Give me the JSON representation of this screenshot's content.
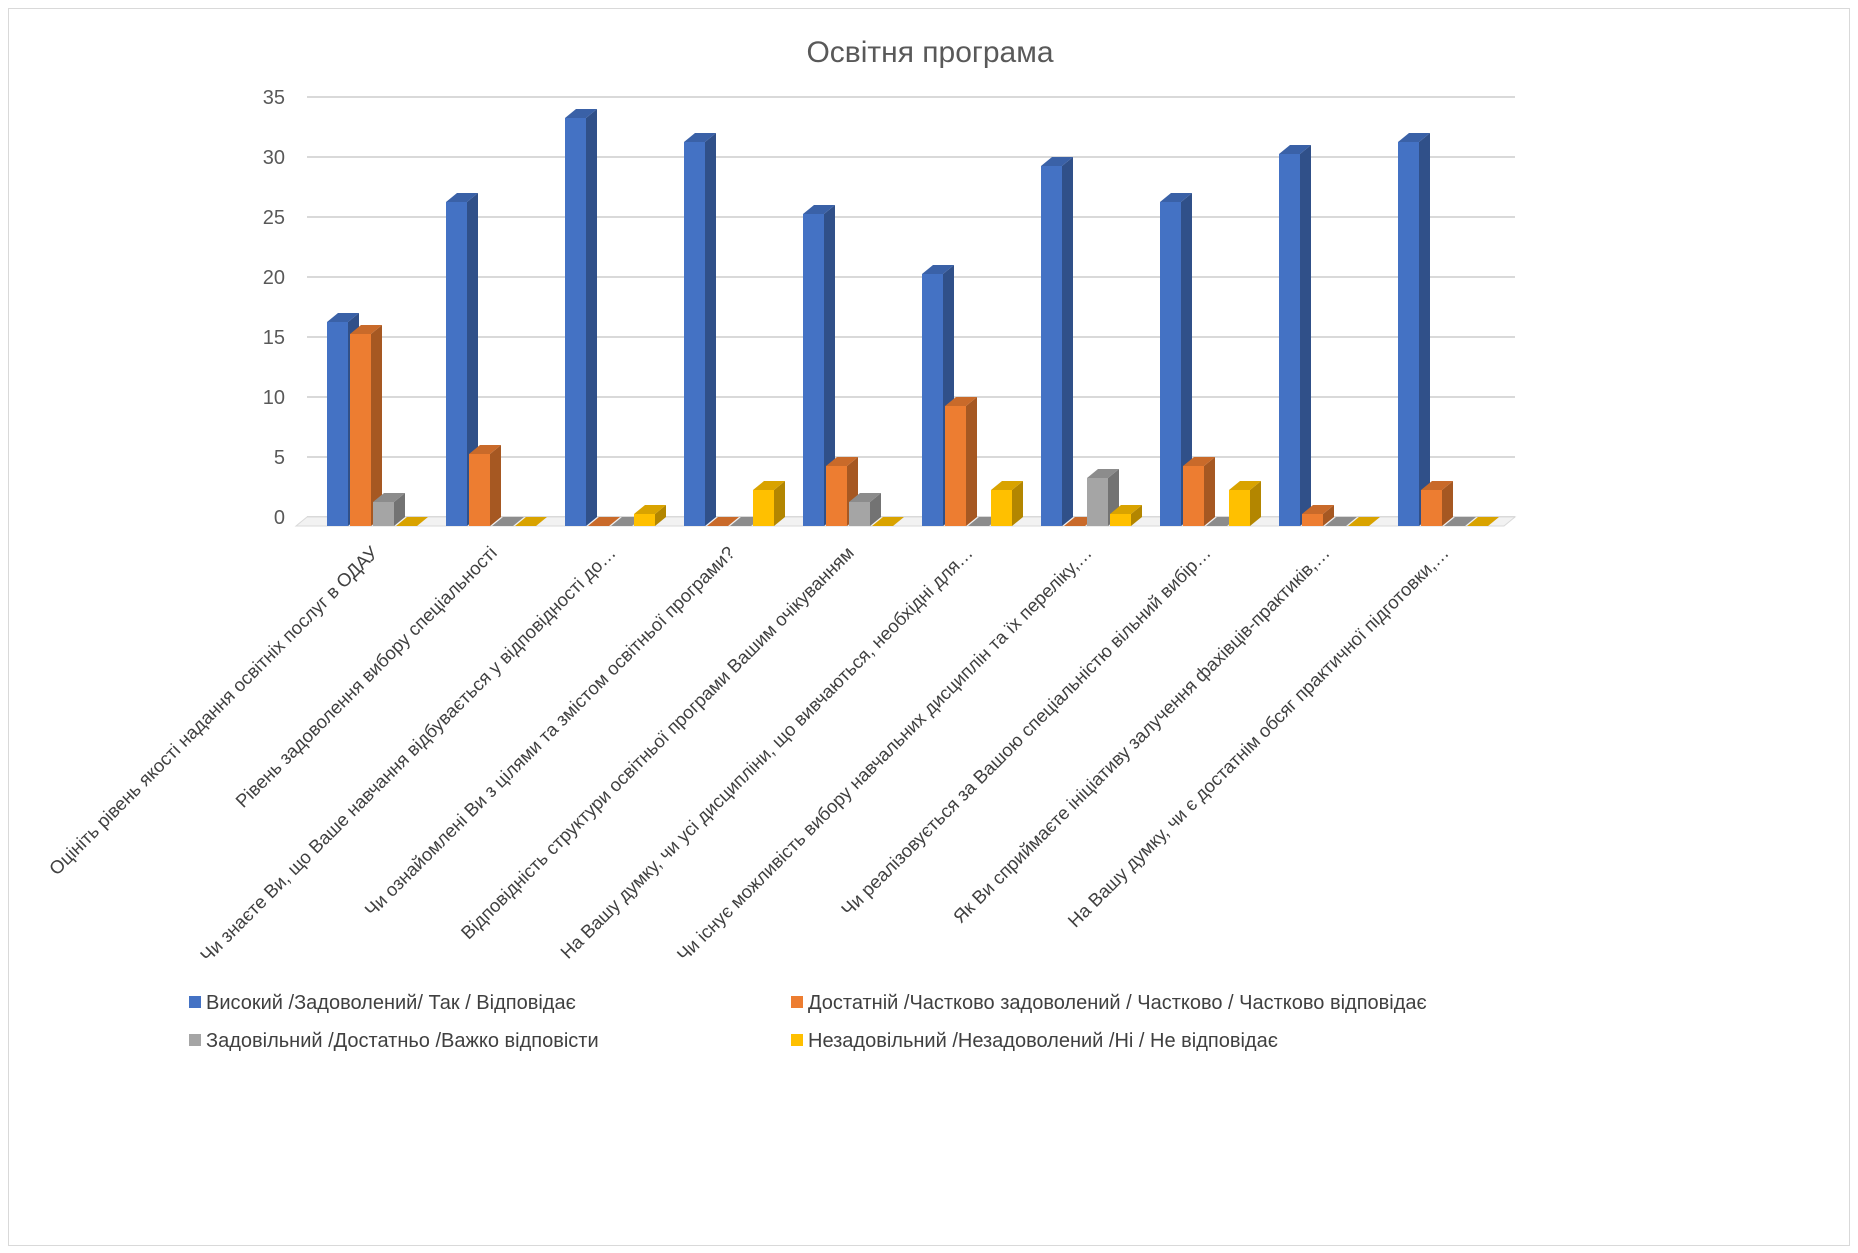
{
  "chart_data": {
    "type": "bar",
    "title": "Освітня програма",
    "xlabel": "",
    "ylabel": "",
    "ylim": [
      0,
      35
    ],
    "yticks": [
      0,
      5,
      10,
      15,
      20,
      25,
      30,
      35
    ],
    "grid": true,
    "legend_position": "bottom",
    "categories": [
      "Оцініть рівень якості надання освітніх послуг в ОДАУ",
      "Рівень задоволення вибору спеціальності",
      "Чи знаєте Ви, що Ваше навчання відбувається у відповідності до…",
      "Чи ознайомлені Ви з цілями та змістом освітньої програми?",
      "Відповідність структури освітньої програми Вашим очікуванням",
      "На Вашу думку, чи усі дисципліни, що вивчаються, необхідні для…",
      "Чи існує можливість вибору навчальних дисциплін та їх переліку,…",
      "Чи реалізовується за Вашою спеціальністю вільний вибір…",
      "Як Ви сприймаєте ініціативу залучення фахівців-практиків,…",
      "На Вашу думку, чи є достатнім обсяг практичної підготовки,…"
    ],
    "series": [
      {
        "name": "Високий /Задоволений/ Так / Відповідає",
        "color": "#4472c4",
        "values": [
          17,
          27,
          34,
          32,
          26,
          21,
          30,
          27,
          31,
          32
        ]
      },
      {
        "name": "Достатній /Частково задоволений / Частково / Частково відповідає",
        "color": "#ed7d31",
        "values": [
          16,
          6,
          0,
          0,
          5,
          10,
          0,
          5,
          1,
          3
        ]
      },
      {
        "name": "Задовільний /Достатньо /Важко відповісти",
        "color": "#a5a5a5",
        "values": [
          2,
          0,
          0,
          0,
          2,
          0,
          4,
          0,
          0,
          0
        ]
      },
      {
        "name": "Незадовільний /Незадоволений /Ні / Не відповідає",
        "color": "#ffc000",
        "values": [
          0,
          0,
          1,
          3,
          0,
          3,
          1,
          3,
          0,
          0
        ]
      }
    ]
  }
}
